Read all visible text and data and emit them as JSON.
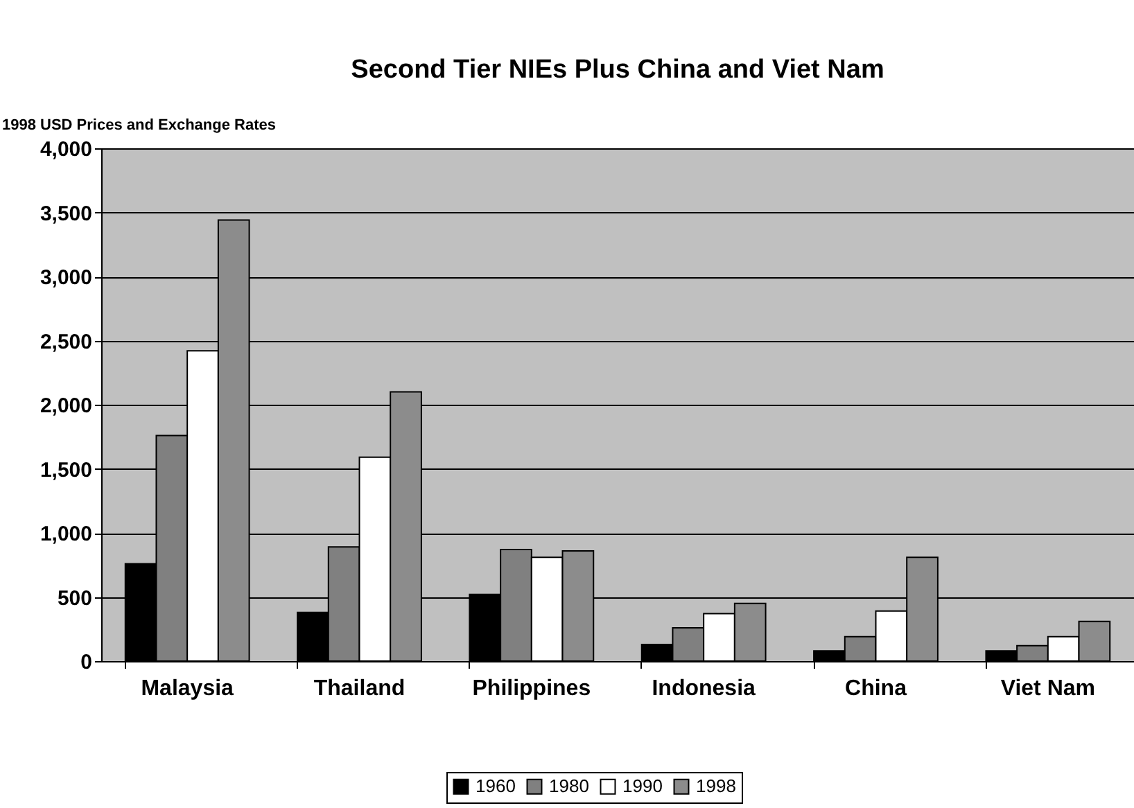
{
  "chart_data": {
    "type": "bar",
    "title": "Second Tier NIEs Plus China and Viet Nam",
    "ylabel": "1998 USD Prices and Exchange Rates",
    "categories": [
      "Malaysia",
      "Thailand",
      "Philippines",
      "Indonesia",
      "China",
      "Viet Nam"
    ],
    "series": [
      {
        "name": "1960",
        "color": "#000000",
        "values": [
          760,
          380,
          520,
          130,
          80,
          80
        ]
      },
      {
        "name": "1980",
        "color": "#808080",
        "values": [
          1760,
          890,
          870,
          260,
          190,
          120
        ]
      },
      {
        "name": "1990",
        "color": "#ffffff",
        "values": [
          2420,
          1590,
          810,
          370,
          390,
          190
        ]
      },
      {
        "name": "1998",
        "color": "#8c8c8c",
        "values": [
          3440,
          2100,
          860,
          450,
          810,
          310
        ]
      }
    ],
    "ylim": [
      0,
      4000
    ],
    "yticks": [
      {
        "value": 0,
        "label": "0"
      },
      {
        "value": 500,
        "label": "500"
      },
      {
        "value": 1000,
        "label": "1,000"
      },
      {
        "value": 1500,
        "label": "1,500"
      },
      {
        "value": 2000,
        "label": "2,000"
      },
      {
        "value": 2500,
        "label": "2,500"
      },
      {
        "value": 3000,
        "label": "3,000"
      },
      {
        "value": 3500,
        "label": "3,500"
      },
      {
        "value": 4000,
        "label": "4,000"
      }
    ],
    "grid": "y",
    "legend": "bottom"
  }
}
